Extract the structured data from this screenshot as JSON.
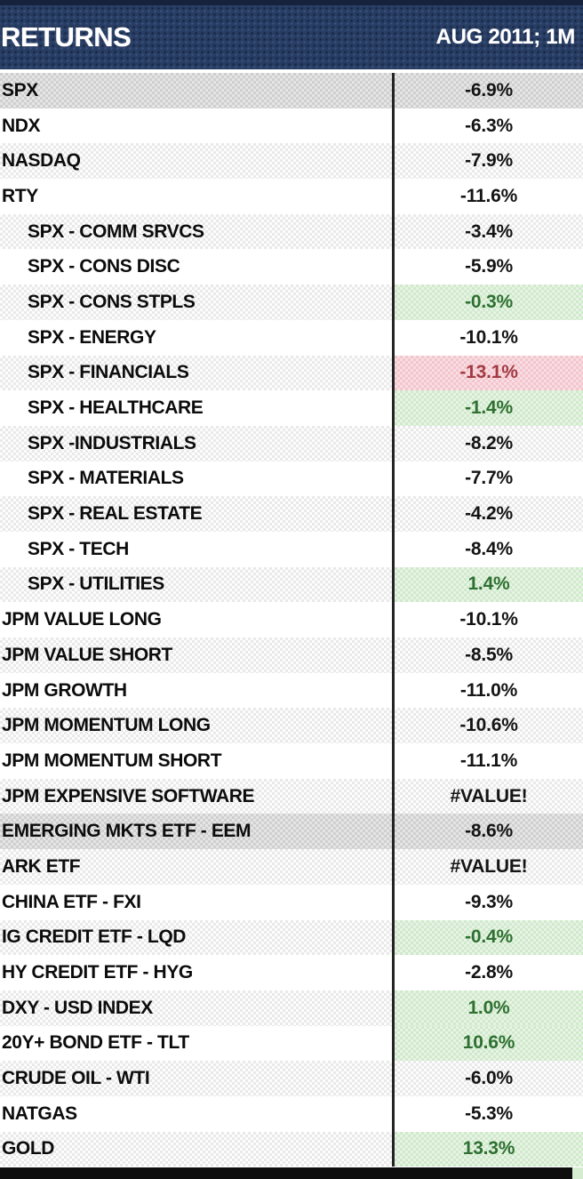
{
  "header": {
    "title": "RETURNS",
    "period": "AUG 2011; 1M"
  },
  "colors": {
    "header_navy": "#283d63",
    "highlight_gray": "#cfcfcf",
    "stripe_gray": "#efefef",
    "positive_bg": "#cfe9ca",
    "positive_text": "#2e7031",
    "negative_bg": "#f3c6ce",
    "negative_text": "#a23a42",
    "divider_black": "#242424"
  },
  "table": {
    "rows": [
      {
        "label": "SPX",
        "value": "-6.9%",
        "indent": false,
        "row_style": "highlight",
        "value_style": "default"
      },
      {
        "label": "NDX",
        "value": "-6.3%",
        "indent": false,
        "row_style": "plain",
        "value_style": "default"
      },
      {
        "label": "NASDAQ",
        "value": "-7.9%",
        "indent": false,
        "row_style": "striped",
        "value_style": "default"
      },
      {
        "label": "RTY",
        "value": "-11.6%",
        "indent": false,
        "row_style": "plain",
        "value_style": "default"
      },
      {
        "label": "SPX - COMM SRVCS",
        "value": "-3.4%",
        "indent": true,
        "row_style": "striped",
        "value_style": "default"
      },
      {
        "label": "SPX - CONS DISC",
        "value": "-5.9%",
        "indent": true,
        "row_style": "plain",
        "value_style": "default"
      },
      {
        "label": "SPX - CONS STPLS",
        "value": "-0.3%",
        "indent": true,
        "row_style": "striped",
        "value_style": "positive"
      },
      {
        "label": "SPX - ENERGY",
        "value": "-10.1%",
        "indent": true,
        "row_style": "plain",
        "value_style": "default"
      },
      {
        "label": "SPX - FINANCIALS",
        "value": "-13.1%",
        "indent": true,
        "row_style": "striped",
        "value_style": "negative"
      },
      {
        "label": "SPX - HEALTHCARE",
        "value": "-1.4%",
        "indent": true,
        "row_style": "plain",
        "value_style": "positive"
      },
      {
        "label": "SPX -INDUSTRIALS",
        "value": "-8.2%",
        "indent": true,
        "row_style": "striped",
        "value_style": "default"
      },
      {
        "label": "SPX - MATERIALS",
        "value": "-7.7%",
        "indent": true,
        "row_style": "plain",
        "value_style": "default"
      },
      {
        "label": "SPX - REAL ESTATE",
        "value": "-4.2%",
        "indent": true,
        "row_style": "striped",
        "value_style": "default"
      },
      {
        "label": "SPX - TECH",
        "value": "-8.4%",
        "indent": true,
        "row_style": "plain",
        "value_style": "default"
      },
      {
        "label": "SPX - UTILITIES",
        "value": "1.4%",
        "indent": true,
        "row_style": "striped",
        "value_style": "positive"
      },
      {
        "label": "JPM VALUE LONG",
        "value": "-10.1%",
        "indent": false,
        "row_style": "plain",
        "value_style": "default"
      },
      {
        "label": "JPM VALUE SHORT",
        "value": "-8.5%",
        "indent": false,
        "row_style": "striped",
        "value_style": "default"
      },
      {
        "label": "JPM GROWTH",
        "value": "-11.0%",
        "indent": false,
        "row_style": "plain",
        "value_style": "default"
      },
      {
        "label": "JPM MOMENTUM LONG",
        "value": "-10.6%",
        "indent": false,
        "row_style": "striped",
        "value_style": "default"
      },
      {
        "label": "JPM MOMENTUM SHORT",
        "value": "-11.1%",
        "indent": false,
        "row_style": "plain",
        "value_style": "default"
      },
      {
        "label": "JPM EXPENSIVE SOFTWARE",
        "value": "#VALUE!",
        "indent": false,
        "row_style": "striped",
        "value_style": "default"
      },
      {
        "label": "EMERGING MKTS ETF - EEM",
        "value": "-8.6%",
        "indent": false,
        "row_style": "highlight",
        "value_style": "default"
      },
      {
        "label": "ARK ETF",
        "value": "#VALUE!",
        "indent": false,
        "row_style": "striped",
        "value_style": "default"
      },
      {
        "label": "CHINA ETF - FXI",
        "value": "-9.3%",
        "indent": false,
        "row_style": "plain",
        "value_style": "default"
      },
      {
        "label": "IG CREDIT ETF - LQD",
        "value": "-0.4%",
        "indent": false,
        "row_style": "striped",
        "value_style": "positive"
      },
      {
        "label": "HY CREDIT ETF - HYG",
        "value": "-2.8%",
        "indent": false,
        "row_style": "plain",
        "value_style": "default"
      },
      {
        "label": "DXY - USD INDEX",
        "value": "1.0%",
        "indent": false,
        "row_style": "striped",
        "value_style": "positive"
      },
      {
        "label": "20Y+ BOND ETF - TLT",
        "value": "10.6%",
        "indent": false,
        "row_style": "plain",
        "value_style": "positive"
      },
      {
        "label": "CRUDE OIL - WTI",
        "value": "-6.0%",
        "indent": false,
        "row_style": "striped",
        "value_style": "default"
      },
      {
        "label": "NATGAS",
        "value": "-5.3%",
        "indent": false,
        "row_style": "plain",
        "value_style": "default"
      },
      {
        "label": "GOLD",
        "value": "13.3%",
        "indent": false,
        "row_style": "striped",
        "value_style": "positive"
      }
    ]
  }
}
